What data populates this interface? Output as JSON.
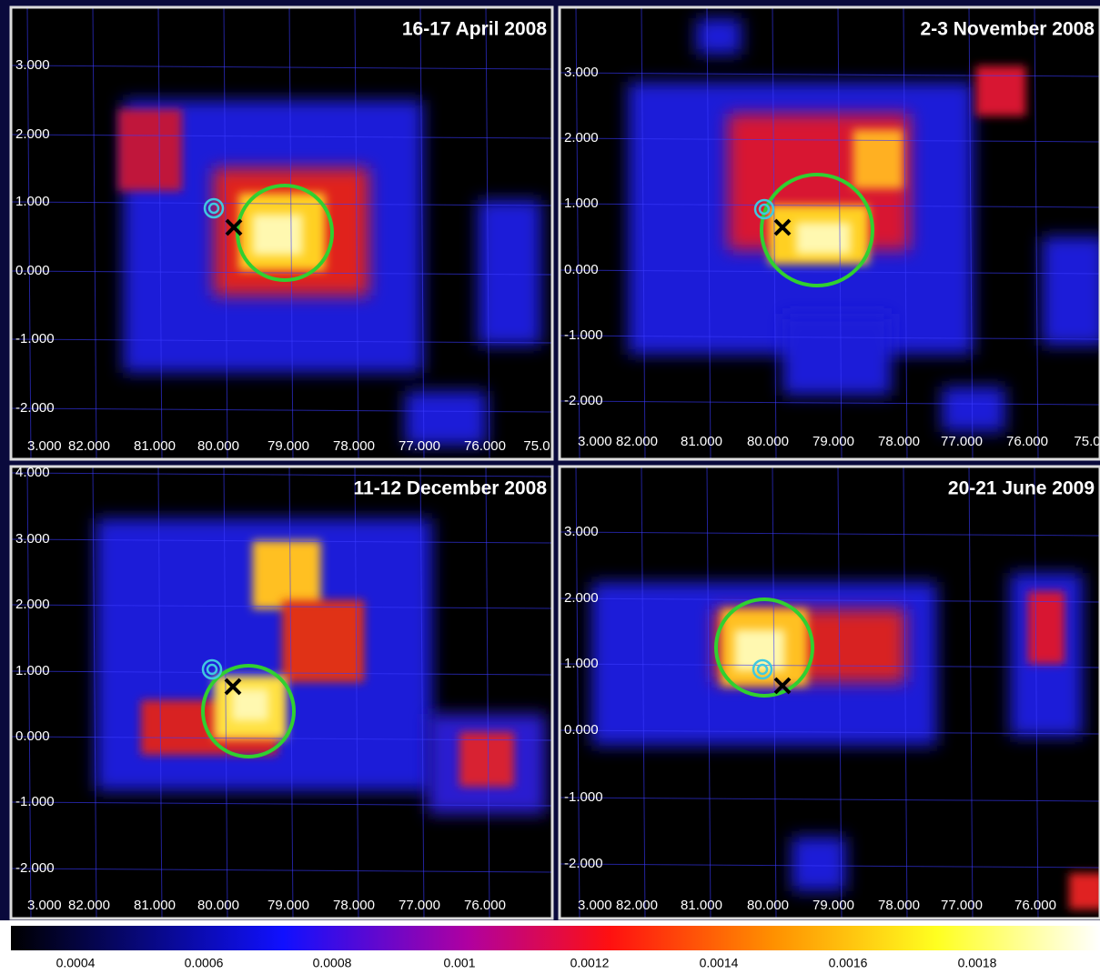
{
  "panels": [
    {
      "title": "16-17 April 2008",
      "yticks": [
        "3.000",
        "2.000",
        "1.000",
        "0.000",
        "-1.000",
        "-2.000"
      ],
      "xticks": [
        "3.000",
        "82.000",
        "81.000",
        "80.000",
        "79.000",
        "78.000",
        "77.000",
        "76.000",
        "75.0"
      ]
    },
    {
      "title": "2-3 November 2008",
      "yticks": [
        "3.000",
        "2.000",
        "1.000",
        "0.000",
        "-1.000",
        "-2.000"
      ],
      "xticks": [
        "3.000",
        "82.000",
        "81.000",
        "80.000",
        "79.000",
        "78.000",
        "77.000",
        "76.000",
        "75.0"
      ]
    },
    {
      "title": "11-12 December 2008",
      "yticks": [
        "4.000",
        "3.000",
        "2.000",
        "1.000",
        "0.000",
        "-1.000",
        "-2.000"
      ],
      "xticks": [
        "3.000",
        "82.000",
        "81.000",
        "80.000",
        "79.000",
        "78.000",
        "77.000",
        "76.000"
      ]
    },
    {
      "title": "20-21 June 2009",
      "yticks": [
        "3.000",
        "2.000",
        "1.000",
        "0.000",
        "-1.000",
        "-2.000"
      ],
      "xticks": [
        "3.000",
        "82.000",
        "81.000",
        "80.000",
        "79.000",
        "78.000",
        "77.000",
        "76.000"
      ]
    }
  ],
  "colorbar": {
    "labels": [
      "0.0004",
      "0.0006",
      "0.0008",
      "0.001",
      "0.0012",
      "0.0014",
      "0.0016",
      "0.0018"
    ]
  }
}
